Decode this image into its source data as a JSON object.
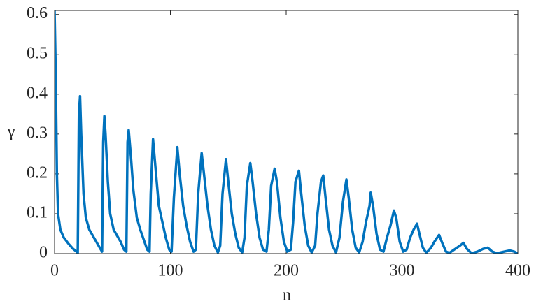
{
  "chart_data": {
    "type": "line",
    "xlabel": "n",
    "ylabel": "γ",
    "xlim": [
      0,
      400
    ],
    "ylim": [
      0,
      0.61
    ],
    "xticks": [
      0,
      100,
      200,
      300,
      400
    ],
    "yticks": [
      0,
      0.1,
      0.2,
      0.3,
      0.4,
      0.5,
      0.6
    ],
    "series": [
      {
        "color": "#0072bd",
        "x": [
          0,
          1,
          2,
          3,
          5,
          8,
          12,
          16,
          19,
          20,
          21,
          22,
          23,
          25,
          27,
          30,
          33,
          36,
          39,
          41,
          42,
          43,
          44,
          46,
          48,
          51,
          54,
          57,
          60,
          62,
          63,
          64,
          66,
          68,
          71,
          74,
          77,
          80,
          82,
          83,
          85,
          87,
          90,
          93,
          96,
          99,
          101,
          103,
          106,
          108,
          111,
          114,
          117,
          120,
          122,
          124,
          127,
          129,
          132,
          135,
          138,
          141,
          143,
          145,
          148,
          150,
          153,
          156,
          159,
          162,
          164,
          166,
          169,
          171,
          174,
          177,
          180,
          183,
          185,
          187,
          190,
          192,
          195,
          198,
          201,
          204,
          206,
          208,
          211,
          213,
          216,
          219,
          222,
          225,
          227,
          230,
          232,
          234,
          237,
          240,
          243,
          246,
          249,
          252,
          254,
          257,
          260,
          263,
          266,
          269,
          272,
          273,
          275,
          278,
          281,
          284,
          287,
          290,
          293,
          295,
          298,
          301,
          304,
          307,
          310,
          313,
          315,
          318,
          321,
          325,
          328,
          332,
          335,
          338,
          341,
          345,
          350,
          353,
          356,
          360,
          365,
          370,
          374,
          378,
          382,
          388,
          393,
          397,
          400
        ],
        "values": [
          0.61,
          0.45,
          0.2,
          0.1,
          0.06,
          0.04,
          0.025,
          0.012,
          0.005,
          0.0,
          0.35,
          0.395,
          0.3,
          0.15,
          0.09,
          0.06,
          0.045,
          0.03,
          0.015,
          0.005,
          0.28,
          0.345,
          0.3,
          0.18,
          0.1,
          0.06,
          0.045,
          0.03,
          0.01,
          0.005,
          0.28,
          0.31,
          0.24,
          0.16,
          0.09,
          0.06,
          0.035,
          0.01,
          0.005,
          0.15,
          0.287,
          0.22,
          0.12,
          0.08,
          0.04,
          0.01,
          0.005,
          0.14,
          0.267,
          0.2,
          0.12,
          0.07,
          0.03,
          0.005,
          0.01,
          0.15,
          0.252,
          0.2,
          0.12,
          0.06,
          0.02,
          0.003,
          0.02,
          0.15,
          0.237,
          0.18,
          0.1,
          0.05,
          0.015,
          0.003,
          0.04,
          0.17,
          0.227,
          0.18,
          0.1,
          0.04,
          0.01,
          0.005,
          0.06,
          0.17,
          0.213,
          0.18,
          0.09,
          0.03,
          0.005,
          0.01,
          0.08,
          0.18,
          0.208,
          0.15,
          0.07,
          0.02,
          0.003,
          0.02,
          0.1,
          0.18,
          0.196,
          0.14,
          0.06,
          0.02,
          0.003,
          0.04,
          0.13,
          0.186,
          0.14,
          0.06,
          0.015,
          0.003,
          0.03,
          0.08,
          0.12,
          0.153,
          0.12,
          0.05,
          0.01,
          0.005,
          0.04,
          0.07,
          0.108,
          0.09,
          0.03,
          0.005,
          0.01,
          0.04,
          0.06,
          0.075,
          0.05,
          0.015,
          0.002,
          0.015,
          0.03,
          0.047,
          0.025,
          0.005,
          0.002,
          0.01,
          0.02,
          0.027,
          0.012,
          0.001,
          0.005,
          0.012,
          0.015,
          0.005,
          0.001,
          0.005,
          0.008,
          0.005,
          0.0
        ]
      }
    ]
  }
}
